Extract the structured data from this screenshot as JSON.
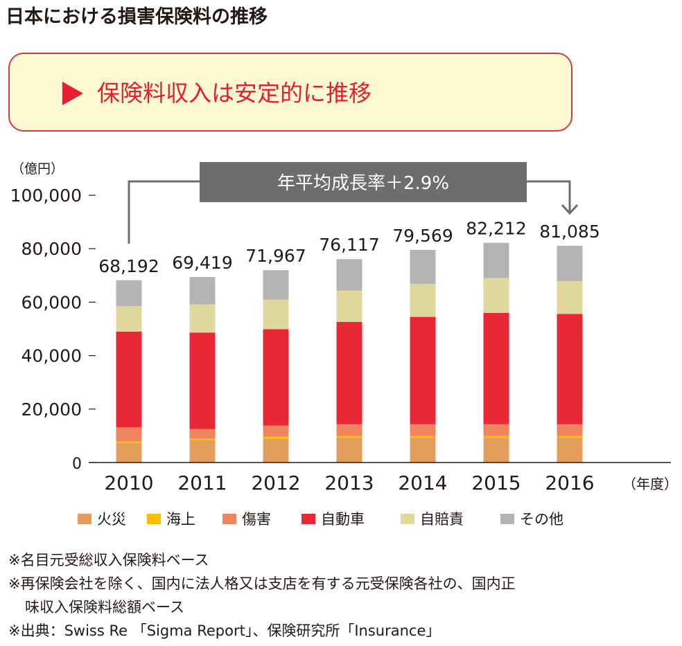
{
  "title": "日本における損害保険料の推移",
  "callout": "保険料収入は安定的に推移",
  "annotation": "年平均成長率＋2.9%",
  "chart_data": {
    "type": "bar",
    "stacked": true,
    "ylabel": "（億円）",
    "xlabel": "（年度）",
    "ylim": [
      0,
      100000
    ],
    "yticks": [
      "0",
      "20,000",
      "40,000",
      "60,000",
      "80,000",
      "100,000"
    ],
    "ytick_values": [
      0,
      20000,
      40000,
      60000,
      80000,
      100000
    ],
    "categories": [
      "2010",
      "2011",
      "2012",
      "2013",
      "2014",
      "2015",
      "2016"
    ],
    "totals": [
      "68,192",
      "69,419",
      "71,967",
      "76,117",
      "79,569",
      "82,212",
      "81,085"
    ],
    "total_values": [
      68192,
      69419,
      71967,
      76117,
      79569,
      82212,
      81085
    ],
    "series": [
      {
        "name": "火災",
        "color": "#e39e5e",
        "values": [
          7300,
          8300,
          9000,
          9300,
          9300,
          9300,
          9300
        ]
      },
      {
        "name": "海上",
        "color": "#f9c000",
        "values": [
          600,
          600,
          700,
          600,
          600,
          600,
          600
        ]
      },
      {
        "name": "傷害",
        "color": "#f0845e",
        "values": [
          5300,
          3600,
          4100,
          4400,
          4400,
          4400,
          4400
        ]
      },
      {
        "name": "自動車",
        "color": "#e82837",
        "values": [
          35800,
          36100,
          36100,
          38300,
          40200,
          41700,
          41300
        ]
      },
      {
        "name": "自賠責",
        "color": "#dfd79c",
        "values": [
          9500,
          10600,
          11100,
          11700,
          12300,
          13000,
          12300
        ]
      },
      {
        "name": "その他",
        "color": "#b4b4b4",
        "values": [
          9692,
          10219,
          10967,
          11817,
          12769,
          13212,
          13185
        ]
      }
    ],
    "legend_position": "bottom"
  },
  "notes": [
    "※名目元受総収入保険料ベース",
    "※再保険会社を除く、国内に法人格又は支店を有する元受保険各社の、国内正",
    "味収入保険料総額ベース",
    "※出典：Swiss Re 「Sigma Report」、保険研究所「Insurance」"
  ]
}
